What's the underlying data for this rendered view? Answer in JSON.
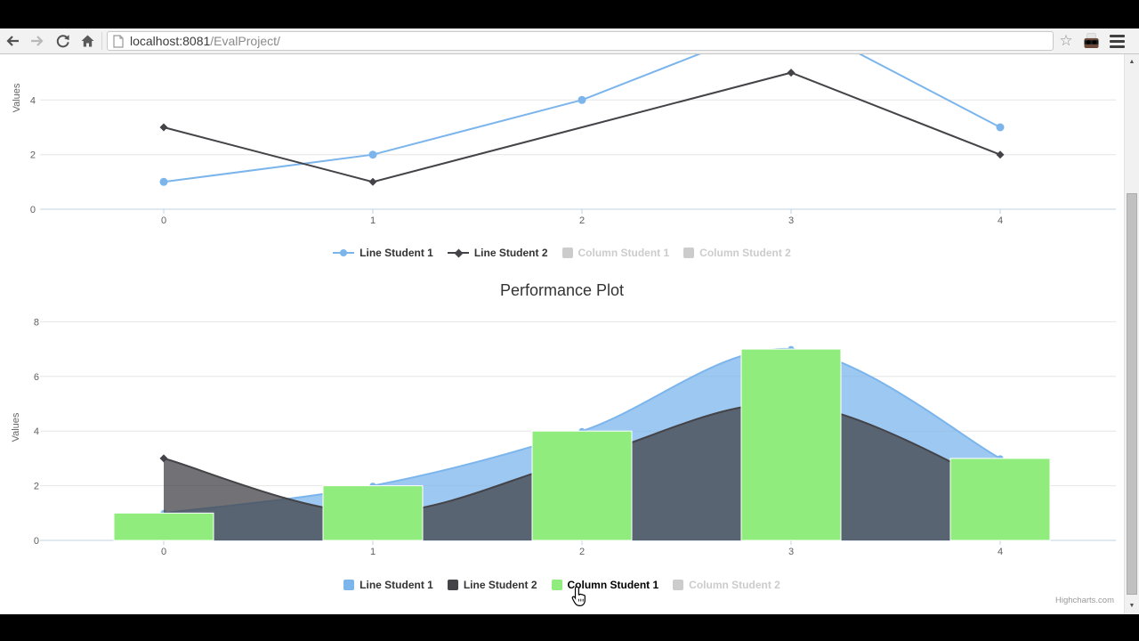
{
  "browser": {
    "url_host": "localhost:8081",
    "url_path": "/EvalProject/",
    "star_icon": "☆"
  },
  "scrollbar": {
    "up_arrow": "▲",
    "down_arrow": "▼"
  },
  "credits": "Highcharts.com",
  "colors": {
    "blue": "#7cb5ec",
    "dark": "#434348",
    "green": "#90ed7d",
    "disabled": "#cccccc"
  },
  "chart_data": [
    {
      "type": "line",
      "x": [
        0,
        1,
        2,
        3,
        4
      ],
      "xlabels": [
        "0",
        "1",
        "2",
        "3",
        "4"
      ],
      "yticks": [
        0,
        2,
        4
      ],
      "ylabel": "Values",
      "grid": true,
      "legend_position": "bottom",
      "note": "top of chart cropped by scroll; Line Student 1 peak value 7 at x=3 cut off",
      "series": [
        {
          "name": "Line Student 1",
          "type": "line",
          "color": "#7cb5ec",
          "marker": "circle",
          "values": [
            1,
            2,
            4,
            7,
            3
          ],
          "visible": true
        },
        {
          "name": "Line Student 2",
          "type": "line",
          "color": "#434348",
          "marker": "diamond",
          "values": [
            3,
            1,
            3,
            5,
            2
          ],
          "markers_at": [
            0,
            1,
            3,
            4
          ],
          "visible": true
        },
        {
          "name": "Column Student 1",
          "type": "column",
          "color": "#90ed7d",
          "visible": false
        },
        {
          "name": "Column Student 2",
          "type": "column",
          "color": "#cccccc",
          "visible": false
        }
      ]
    },
    {
      "type": "mixed",
      "title": "Performance Plot",
      "x": [
        0,
        1,
        2,
        3,
        4
      ],
      "xlabels": [
        "0",
        "1",
        "2",
        "3",
        "4"
      ],
      "yticks": [
        0,
        2,
        4,
        6,
        8
      ],
      "ylim": [
        0,
        8
      ],
      "ylabel": "Values",
      "grid": true,
      "legend_position": "bottom",
      "series": [
        {
          "name": "Line Student 1",
          "type": "areaspline",
          "color": "#7cb5ec",
          "marker": "circle",
          "values": [
            1,
            2,
            4,
            7,
            3
          ],
          "visible": true
        },
        {
          "name": "Line Student 2",
          "type": "areaspline",
          "color": "#434348",
          "marker": "diamond",
          "values": [
            3,
            1,
            3,
            5,
            2
          ],
          "visible": true
        },
        {
          "name": "Column Student 1",
          "type": "column",
          "color": "#90ed7d",
          "values": [
            1,
            2,
            4,
            7,
            3
          ],
          "visible": true,
          "hovered": true
        },
        {
          "name": "Column Student 2",
          "type": "column",
          "color": "#cccccc",
          "visible": false
        }
      ]
    }
  ]
}
